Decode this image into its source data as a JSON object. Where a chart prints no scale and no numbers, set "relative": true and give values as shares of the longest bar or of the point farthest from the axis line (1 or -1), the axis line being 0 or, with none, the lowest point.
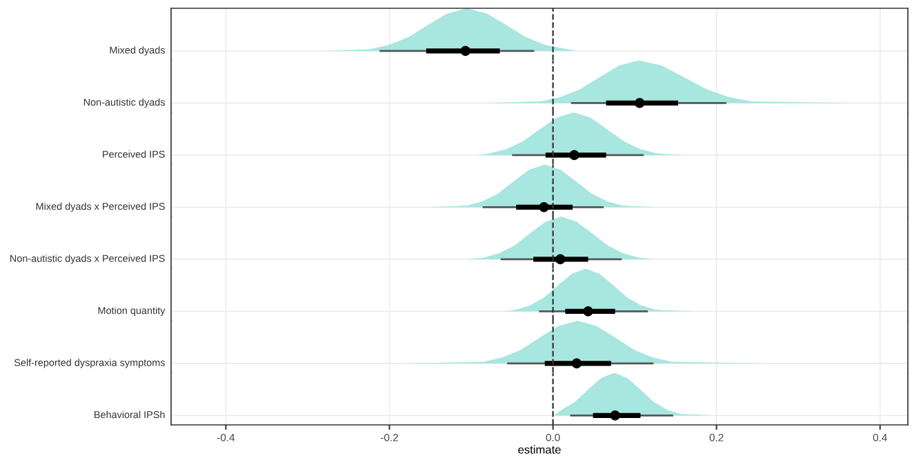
{
  "chart_data": [
    {
      "type": "area",
      "relative": true,
      "ylabel": "Mixed dyads",
      "xlim": [
        -0.467,
        0.434
      ],
      "xticks": [
        -0.4,
        -0.2,
        0.0,
        0.2,
        0.4
      ],
      "grid": "x",
      "tick_labels": false,
      "ref_lines": [
        {
          "axis": "x",
          "value": 0,
          "line_style": "dashed",
          "color": "#333333"
        }
      ],
      "series": [
        {
          "color": "#a8e6e0",
          "x": [
            -0.28,
            -0.225,
            -0.201,
            -0.177,
            -0.153,
            -0.129,
            -0.105,
            -0.081,
            -0.057,
            -0.033,
            -0.009,
            0.03
          ],
          "values": [
            0,
            0.04,
            0.14,
            0.32,
            0.61,
            0.88,
            1,
            0.88,
            0.61,
            0.32,
            0.14,
            0
          ]
        },
        {
          "type": "line",
          "color": "#555555",
          "x": [
            -0.212,
            -0.023
          ],
          "values": [
            0,
            0
          ]
        },
        {
          "type": "line",
          "color": "#000000",
          "x": [
            -0.155,
            -0.065
          ],
          "values": [
            0,
            0
          ]
        },
        {
          "type": "scatter",
          "color": "#000000",
          "x": [
            -0.107
          ],
          "values": [
            0
          ]
        }
      ]
    },
    {
      "type": "area",
      "relative": true,
      "ylabel": "Non-autistic dyads",
      "xlim": [
        -0.467,
        0.434
      ],
      "xticks": [
        -0.4,
        -0.2,
        0.0,
        0.2,
        0.4
      ],
      "grid": "x",
      "tick_labels": false,
      "ref_lines": [
        {
          "axis": "x",
          "value": 0,
          "line_style": "dashed",
          "color": "#333333"
        }
      ],
      "series": [
        {
          "color": "#a8e6e0",
          "x": [
            -0.086,
            -0.015,
            0.009,
            0.033,
            0.057,
            0.081,
            0.105,
            0.133,
            0.16,
            0.188,
            0.215,
            0.243,
            0.375
          ],
          "values": [
            0,
            0.04,
            0.14,
            0.32,
            0.61,
            0.88,
            1,
            0.88,
            0.61,
            0.32,
            0.14,
            0.04,
            0
          ]
        },
        {
          "type": "line",
          "color": "#555555",
          "x": [
            0.022,
            0.212
          ],
          "values": [
            0,
            0
          ]
        },
        {
          "type": "line",
          "color": "#000000",
          "x": [
            0.065,
            0.153
          ],
          "values": [
            0,
            0
          ]
        },
        {
          "type": "scatter",
          "color": "#000000",
          "x": [
            0.106
          ],
          "values": [
            0
          ]
        }
      ]
    },
    {
      "type": "area",
      "relative": true,
      "ylabel": "Perceived IPS",
      "xlim": [
        -0.467,
        0.434
      ],
      "xticks": [
        -0.4,
        -0.2,
        0.0,
        0.2,
        0.4
      ],
      "grid": "x",
      "tick_labels": false,
      "ref_lines": [
        {
          "axis": "x",
          "value": 0,
          "line_style": "dashed",
          "color": "#333333"
        }
      ],
      "series": [
        {
          "color": "#a8e6e0",
          "x": [
            -0.094,
            -0.078,
            -0.057,
            -0.037,
            -0.016,
            0.005,
            0.025,
            0.046,
            0.066,
            0.087,
            0.107,
            0.128,
            0.161
          ],
          "values": [
            0,
            0.04,
            0.14,
            0.32,
            0.61,
            0.88,
            1,
            0.88,
            0.61,
            0.32,
            0.14,
            0.04,
            0
          ]
        },
        {
          "type": "line",
          "color": "#555555",
          "x": [
            -0.05,
            0.111
          ],
          "values": [
            0,
            0
          ]
        },
        {
          "type": "line",
          "color": "#000000",
          "x": [
            -0.009,
            0.065
          ],
          "values": [
            0,
            0
          ]
        },
        {
          "type": "scatter",
          "color": "#000000",
          "x": [
            0.026
          ],
          "values": [
            0
          ]
        }
      ]
    },
    {
      "type": "area",
      "relative": true,
      "ylabel": "Mixed dyads x Perceived IPS",
      "xlim": [
        -0.467,
        0.434
      ],
      "xticks": [
        -0.4,
        -0.2,
        0.0,
        0.2,
        0.4
      ],
      "grid": "x",
      "tick_labels": false,
      "ref_lines": [
        {
          "axis": "x",
          "value": 0,
          "line_style": "dashed",
          "color": "#333333"
        }
      ],
      "series": [
        {
          "color": "#a8e6e0",
          "x": [
            -0.153,
            -0.105,
            -0.086,
            -0.067,
            -0.048,
            -0.029,
            -0.01,
            0.009,
            0.028,
            0.047,
            0.066,
            0.085,
            0.125
          ],
          "values": [
            0,
            0.04,
            0.14,
            0.32,
            0.61,
            0.88,
            1,
            0.88,
            0.61,
            0.32,
            0.14,
            0.04,
            0
          ]
        },
        {
          "type": "line",
          "color": "#555555",
          "x": [
            -0.086,
            0.062
          ],
          "values": [
            0,
            0
          ]
        },
        {
          "type": "line",
          "color": "#000000",
          "x": [
            -0.045,
            0.024
          ],
          "values": [
            0,
            0
          ]
        },
        {
          "type": "scatter",
          "color": "#000000",
          "x": [
            -0.011
          ],
          "values": [
            0
          ]
        }
      ]
    },
    {
      "type": "area",
      "relative": true,
      "ylabel": "Non-autistic dyads x Perceived IPS",
      "xlim": [
        -0.467,
        0.434
      ],
      "xticks": [
        -0.4,
        -0.2,
        0.0,
        0.2,
        0.4
      ],
      "grid": "x",
      "tick_labels": false,
      "ref_lines": [
        {
          "axis": "x",
          "value": 0,
          "line_style": "dashed",
          "color": "#333333"
        }
      ],
      "series": [
        {
          "color": "#a8e6e0",
          "x": [
            -0.106,
            -0.085,
            -0.066,
            -0.047,
            -0.028,
            -0.009,
            0.01,
            0.029,
            0.048,
            0.067,
            0.086,
            0.105,
            0.125
          ],
          "values": [
            0,
            0.04,
            0.14,
            0.32,
            0.61,
            0.88,
            1,
            0.88,
            0.61,
            0.32,
            0.14,
            0.04,
            0
          ]
        },
        {
          "type": "line",
          "color": "#555555",
          "x": [
            -0.064,
            0.084
          ],
          "values": [
            0,
            0
          ]
        },
        {
          "type": "line",
          "color": "#000000",
          "x": [
            -0.024,
            0.043
          ],
          "values": [
            0,
            0
          ]
        },
        {
          "type": "scatter",
          "color": "#000000",
          "x": [
            0.009
          ],
          "values": [
            0
          ]
        }
      ]
    },
    {
      "type": "area",
      "relative": true,
      "ylabel": "Motion quantity",
      "xlim": [
        -0.467,
        0.434
      ],
      "xticks": [
        -0.4,
        -0.2,
        0.0,
        0.2,
        0.4
      ],
      "grid": "x",
      "tick_labels": false,
      "ref_lines": [
        {
          "axis": "x",
          "value": 0,
          "line_style": "dashed",
          "color": "#333333"
        }
      ],
      "series": [
        {
          "color": "#a8e6e0",
          "x": [
            -0.061,
            -0.045,
            -0.028,
            -0.011,
            0.006,
            0.023,
            0.04,
            0.057,
            0.074,
            0.091,
            0.108,
            0.125,
            0.173
          ],
          "values": [
            0,
            0.04,
            0.14,
            0.32,
            0.61,
            0.88,
            1,
            0.88,
            0.61,
            0.32,
            0.14,
            0.04,
            0
          ]
        },
        {
          "type": "line",
          "color": "#555555",
          "x": [
            -0.017,
            0.116
          ],
          "values": [
            0,
            0
          ]
        },
        {
          "type": "line",
          "color": "#000000",
          "x": [
            0.015,
            0.076
          ],
          "values": [
            0,
            0
          ]
        },
        {
          "type": "scatter",
          "color": "#000000",
          "x": [
            0.043
          ],
          "values": [
            0
          ]
        }
      ]
    },
    {
      "type": "area",
      "relative": true,
      "ylabel": "Self-reported dyspraxia symptoms",
      "xlim": [
        -0.467,
        0.434
      ],
      "xticks": [
        -0.4,
        -0.2,
        0.0,
        0.2,
        0.4
      ],
      "grid": "x",
      "tick_labels": false,
      "ref_lines": [
        {
          "axis": "x",
          "value": 0,
          "line_style": "dashed",
          "color": "#333333"
        }
      ],
      "series": [
        {
          "color": "#a8e6e0",
          "x": [
            -0.187,
            -0.085,
            -0.062,
            -0.039,
            -0.016,
            0.007,
            0.03,
            0.053,
            0.076,
            0.099,
            0.122,
            0.145,
            0.265
          ],
          "values": [
            0,
            0.04,
            0.14,
            0.32,
            0.61,
            0.88,
            1,
            0.88,
            0.61,
            0.32,
            0.14,
            0.04,
            0
          ]
        },
        {
          "type": "line",
          "color": "#555555",
          "x": [
            -0.056,
            0.123
          ],
          "values": [
            0,
            0
          ]
        },
        {
          "type": "line",
          "color": "#000000",
          "x": [
            -0.01,
            0.071
          ],
          "values": [
            0,
            0
          ]
        },
        {
          "type": "scatter",
          "color": "#000000",
          "x": [
            0.029
          ],
          "values": [
            0
          ]
        }
      ]
    },
    {
      "type": "area",
      "relative": true,
      "ylabel": "Behavioral IPSh",
      "xlabel": "estimate",
      "xlim": [
        -0.467,
        0.434
      ],
      "xticks": [
        -0.4,
        -0.2,
        {
          "value": 0,
          "label": "0.0"
        },
        0.2,
        0.4
      ],
      "grid": "x",
      "tick_labels": "x",
      "ref_lines": [
        {
          "axis": "x",
          "value": 0,
          "line_style": "dashed",
          "color": "#333333"
        }
      ],
      "series": [
        {
          "color": "#a8e6e0",
          "x": [
            0.001,
            0.011,
            0.027,
            0.043,
            0.059,
            0.075,
            0.091,
            0.107,
            0.123,
            0.139,
            0.155,
            0.195
          ],
          "values": [
            0,
            0.14,
            0.32,
            0.61,
            0.88,
            1,
            0.88,
            0.61,
            0.32,
            0.14,
            0.04,
            0
          ]
        },
        {
          "type": "line",
          "color": "#555555",
          "x": [
            0.021,
            0.147
          ],
          "values": [
            0,
            0
          ]
        },
        {
          "type": "line",
          "color": "#000000",
          "x": [
            0.049,
            0.107
          ],
          "values": [
            0,
            0
          ]
        },
        {
          "type": "scatter",
          "color": "#000000",
          "x": [
            0.076
          ],
          "values": [
            0
          ]
        }
      ]
    }
  ]
}
